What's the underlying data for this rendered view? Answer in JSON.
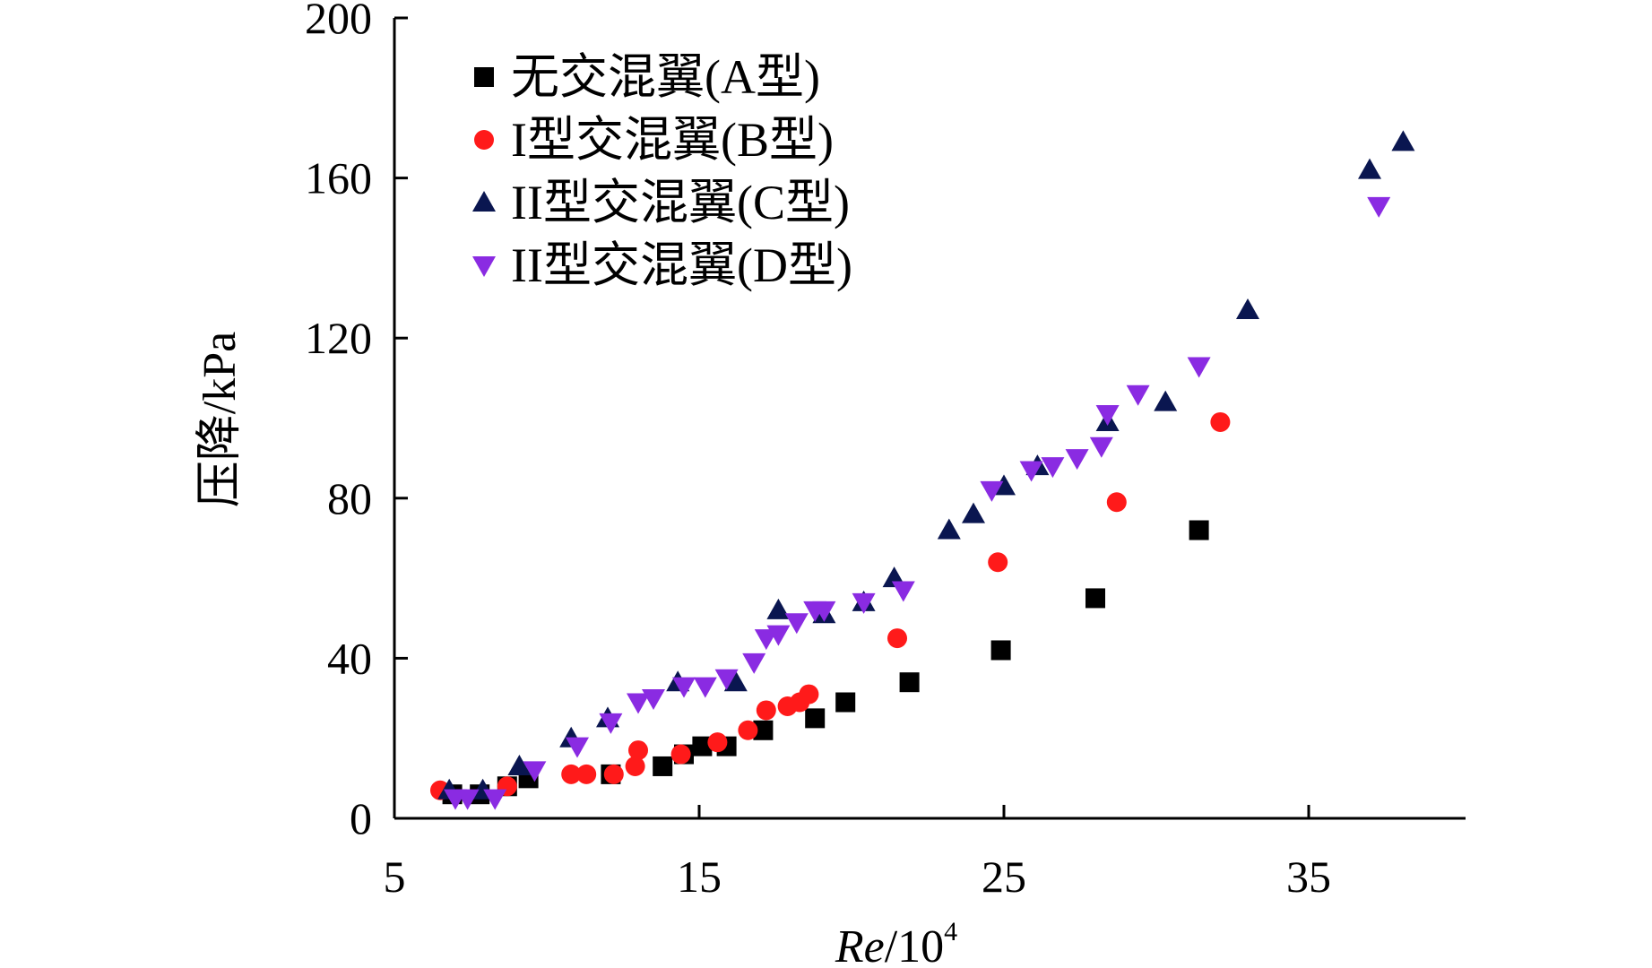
{
  "chart_data": {
    "type": "scatter",
    "title": "",
    "xlabel": {
      "italic": "Re",
      "rest": "/10",
      "sup": "4"
    },
    "ylabel": "压降/kPa",
    "xlim": [
      5,
      40
    ],
    "ylim": [
      0,
      200
    ],
    "xticks": [
      5,
      15,
      25,
      35
    ],
    "yticks": [
      0,
      40,
      80,
      120,
      160,
      200
    ],
    "legend_position": "top-left",
    "series": [
      {
        "name": "无交混翼(A型)",
        "marker": "square",
        "color": "#000000",
        "points": [
          [
            6.9,
            6
          ],
          [
            7.8,
            6
          ],
          [
            8.7,
            8
          ],
          [
            9.4,
            10
          ],
          [
            12.1,
            11
          ],
          [
            13.8,
            13
          ],
          [
            14.5,
            16
          ],
          [
            15.1,
            18
          ],
          [
            15.9,
            18
          ],
          [
            17.1,
            22
          ],
          [
            18.8,
            25
          ],
          [
            19.8,
            29
          ],
          [
            21.9,
            34
          ],
          [
            24.9,
            42
          ],
          [
            28.0,
            55
          ],
          [
            31.4,
            72
          ]
        ]
      },
      {
        "name": "I型交混翼(B型)",
        "marker": "circle",
        "color": "#ff1a1a",
        "points": [
          [
            6.5,
            7
          ],
          [
            8.7,
            8
          ],
          [
            10.8,
            11
          ],
          [
            11.3,
            11
          ],
          [
            12.2,
            11
          ],
          [
            12.9,
            13
          ],
          [
            13.0,
            17
          ],
          [
            14.4,
            16
          ],
          [
            15.6,
            19
          ],
          [
            16.6,
            22
          ],
          [
            17.2,
            27
          ],
          [
            17.9,
            28
          ],
          [
            18.3,
            29
          ],
          [
            18.6,
            31
          ],
          [
            21.5,
            45
          ],
          [
            24.8,
            64
          ],
          [
            28.7,
            79
          ],
          [
            32.1,
            99
          ]
        ]
      },
      {
        "name": "II型交混翼(C型)",
        "marker": "triangle-up",
        "color": "#0a1650",
        "points": [
          [
            6.8,
            7
          ],
          [
            7.9,
            7
          ],
          [
            9.1,
            13
          ],
          [
            10.8,
            20
          ],
          [
            12.0,
            25
          ],
          [
            14.3,
            34
          ],
          [
            16.2,
            34
          ],
          [
            17.6,
            52
          ],
          [
            19.1,
            51
          ],
          [
            20.4,
            54
          ],
          [
            21.4,
            60
          ],
          [
            23.2,
            72
          ],
          [
            24.0,
            76
          ],
          [
            25.0,
            83
          ],
          [
            26.1,
            88
          ],
          [
            28.4,
            99
          ],
          [
            30.3,
            104
          ],
          [
            33.0,
            127
          ],
          [
            37.0,
            162
          ],
          [
            38.1,
            169
          ]
        ]
      },
      {
        "name": "II型交混翼(D型)",
        "marker": "triangle-down",
        "color": "#8a2be2",
        "points": [
          [
            7.0,
            5
          ],
          [
            7.4,
            5
          ],
          [
            8.3,
            5
          ],
          [
            9.6,
            12
          ],
          [
            11.0,
            18
          ],
          [
            12.1,
            24
          ],
          [
            13.0,
            29
          ],
          [
            13.5,
            30
          ],
          [
            14.5,
            33
          ],
          [
            15.2,
            33
          ],
          [
            15.9,
            35
          ],
          [
            16.8,
            39
          ],
          [
            17.2,
            45
          ],
          [
            17.6,
            46
          ],
          [
            18.2,
            49
          ],
          [
            18.8,
            52
          ],
          [
            19.1,
            52
          ],
          [
            20.4,
            54
          ],
          [
            21.7,
            57
          ],
          [
            24.6,
            82
          ],
          [
            25.9,
            87
          ],
          [
            26.6,
            88
          ],
          [
            27.4,
            90
          ],
          [
            28.2,
            93
          ],
          [
            28.4,
            101
          ],
          [
            29.4,
            106
          ],
          [
            31.4,
            113
          ],
          [
            37.3,
            153
          ]
        ]
      }
    ]
  }
}
